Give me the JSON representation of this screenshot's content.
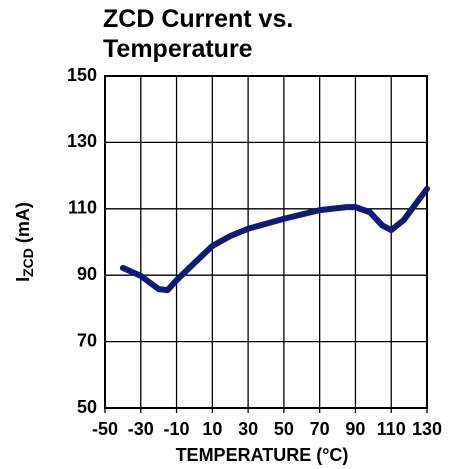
{
  "chart_data": {
    "type": "line",
    "title": "ZCD Current vs. Temperature",
    "xlabel": "TEMPERATURE (°C)",
    "ylabel": [
      "I",
      "ZCD",
      " (mA)"
    ],
    "x": [
      -40,
      -30,
      -20,
      -15,
      -10,
      0,
      10,
      20,
      30,
      50,
      70,
      85,
      90,
      98,
      105,
      110,
      117,
      123,
      130
    ],
    "series": [
      {
        "color": "#101a78",
        "values": [
          92.2,
          89.8,
          85.8,
          85.5,
          88.5,
          93.7,
          98.8,
          101.8,
          104,
          107,
          109.6,
          110.5,
          110.5,
          109,
          105,
          103.6,
          106.6,
          111,
          116
        ]
      }
    ],
    "xlim": [
      -50,
      130
    ],
    "xticks": [
      -50,
      -30,
      -10,
      10,
      30,
      50,
      70,
      90,
      110,
      130
    ],
    "xgrid": [
      -50,
      -30,
      -10,
      10,
      30,
      50,
      70,
      90,
      110,
      130
    ],
    "ylim": [
      50,
      150
    ],
    "yticks": [
      50,
      70,
      90,
      110,
      130,
      150
    ],
    "grid": true
  }
}
